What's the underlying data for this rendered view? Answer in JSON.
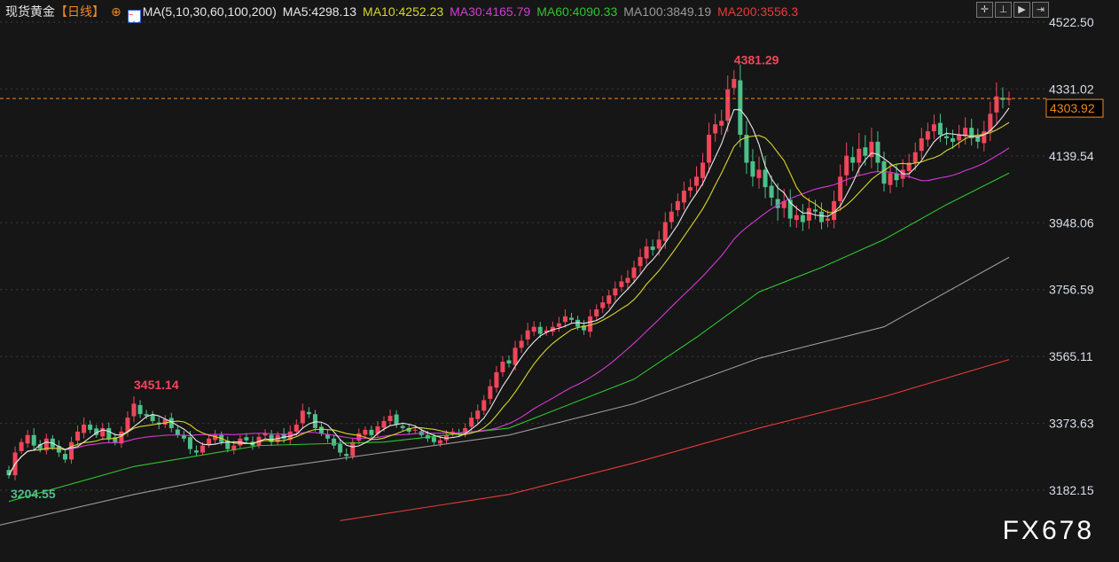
{
  "header": {
    "symbol": "现货黄金",
    "period": "【日线】",
    "ma_icon": "ma-chart-icon",
    "ma_params": "MA(5,10,30,60,100,200)",
    "ma": [
      {
        "label": "MA5:4298.13",
        "color": "#e8e8e8"
      },
      {
        "label": "MA10:4252.23",
        "color": "#d6d62a"
      },
      {
        "label": "MA30:4165.79",
        "color": "#d53ad5"
      },
      {
        "label": "MA60:4090.33",
        "color": "#2fc42f"
      },
      {
        "label": "MA100:3849.19",
        "color": "#9a9a9a"
      },
      {
        "label": "MA200:3556.3",
        "color": "#e83a3a"
      }
    ]
  },
  "toolbar": [
    {
      "icon": "crosshair-icon",
      "glyph": "✛"
    },
    {
      "icon": "axis-scale-icon",
      "glyph": "⊥"
    },
    {
      "icon": "play-icon",
      "glyph": "▶"
    },
    {
      "icon": "exit-right-icon",
      "glyph": "⇥"
    }
  ],
  "watermark": "FX678",
  "colors": {
    "up": "#f0465a",
    "down": "#4cc08a",
    "last_price_line": "#f08a1e"
  },
  "chart_data": {
    "type": "candlestick",
    "y_ticks": [
      "4522.50",
      "4331.02",
      "4139.54",
      "3948.06",
      "3756.59",
      "3565.11",
      "3373.63",
      "3182.15"
    ],
    "ylim": [
      3182.15,
      4522.5
    ],
    "grid": true,
    "last_price": "4303.92",
    "annotations": [
      {
        "text": "3451.14",
        "index": 20,
        "value": 3451.14,
        "color": "#f0465a"
      },
      {
        "text": "3204.55",
        "index": 0,
        "value": 3204.55,
        "color": "#4cc08a"
      },
      {
        "text": "4381.29",
        "index": 116,
        "value": 4381.29,
        "color": "#f0465a"
      }
    ],
    "close": [
      3225,
      3290,
      3320,
      3340,
      3310,
      3300,
      3330,
      3305,
      3290,
      3270,
      3320,
      3350,
      3370,
      3355,
      3340,
      3360,
      3330,
      3320,
      3350,
      3390,
      3430,
      3400,
      3395,
      3380,
      3370,
      3385,
      3360,
      3340,
      3330,
      3300,
      3290,
      3310,
      3330,
      3340,
      3320,
      3300,
      3310,
      3330,
      3325,
      3310,
      3335,
      3345,
      3320,
      3340,
      3330,
      3350,
      3370,
      3410,
      3400,
      3360,
      3345,
      3330,
      3310,
      3290,
      3280,
      3320,
      3345,
      3355,
      3340,
      3365,
      3380,
      3395,
      3370,
      3360,
      3350,
      3355,
      3340,
      3330,
      3320,
      3325,
      3340,
      3350,
      3345,
      3360,
      3390,
      3410,
      3440,
      3480,
      3520,
      3550,
      3545,
      3590,
      3610,
      3640,
      3650,
      3630,
      3640,
      3650,
      3660,
      3680,
      3670,
      3650,
      3640,
      3680,
      3700,
      3720,
      3740,
      3760,
      3780,
      3790,
      3820,
      3850,
      3880,
      3870,
      3900,
      3950,
      3980,
      4010,
      4040,
      4050,
      4080,
      4120,
      4200,
      4230,
      4240,
      4330,
      4360,
      4200,
      4120,
      4080,
      4100,
      4050,
      4020,
      3990,
      4010,
      3960,
      3970,
      3950,
      3990,
      3980,
      3950,
      3960,
      4010,
      4080,
      4140,
      4120,
      4160,
      4140,
      4180,
      4120,
      4060,
      4090,
      4070,
      4100,
      4120,
      4150,
      4190,
      4210,
      4230,
      4200,
      4190,
      4180,
      4200,
      4220,
      4190,
      4180,
      4210,
      4260,
      4310,
      4300,
      4303.92
    ],
    "open_first": 3240,
    "wick": [
      12,
      18,
      10,
      15,
      20,
      12,
      14,
      10,
      16,
      12,
      15,
      18,
      20,
      12,
      10,
      14,
      16,
      12,
      15,
      18,
      21,
      14,
      12,
      10,
      16,
      12,
      15,
      10,
      12,
      18,
      14,
      10,
      12,
      15,
      10,
      12,
      14,
      10,
      12,
      15,
      10,
      12,
      14,
      10,
      16,
      18,
      15,
      20,
      14,
      12,
      10,
      15,
      12,
      14,
      16,
      12,
      14,
      10,
      12,
      15,
      14,
      18,
      12,
      10,
      12,
      14,
      10,
      12,
      10,
      12,
      14,
      10,
      12,
      14,
      16,
      18,
      15,
      20,
      18,
      16,
      14,
      20,
      18,
      22,
      16,
      14,
      12,
      15,
      18,
      20,
      14,
      12,
      16,
      20,
      14,
      18,
      16,
      20,
      18,
      22,
      20,
      24,
      22,
      20,
      25,
      28,
      24,
      22,
      26,
      24,
      30,
      28,
      35,
      30,
      32,
      40,
      25,
      45,
      40,
      35,
      38,
      40,
      30,
      45,
      35,
      30,
      28,
      32,
      30,
      28,
      26,
      24,
      30,
      35,
      38,
      30,
      45,
      35,
      40,
      30,
      28,
      30,
      25,
      30,
      26,
      28,
      30,
      25,
      28,
      26,
      24,
      25,
      28,
      30,
      26,
      24,
      30,
      35,
      40,
      30,
      20
    ],
    "ma60": [
      [
        0,
        3150
      ],
      [
        20,
        3250
      ],
      [
        40,
        3310
      ],
      [
        60,
        3320
      ],
      [
        80,
        3360
      ],
      [
        100,
        3500
      ],
      [
        110,
        3620
      ],
      [
        120,
        3750
      ],
      [
        130,
        3820
      ],
      [
        140,
        3900
      ],
      [
        150,
        4000
      ],
      [
        160,
        4090.33
      ]
    ],
    "ma100": [
      [
        -2,
        3080
      ],
      [
        20,
        3170
      ],
      [
        40,
        3240
      ],
      [
        60,
        3290
      ],
      [
        80,
        3340
      ],
      [
        100,
        3430
      ],
      [
        120,
        3560
      ],
      [
        140,
        3650
      ],
      [
        160,
        3849.19
      ]
    ],
    "ma200": [
      [
        53,
        3095
      ],
      [
        80,
        3170
      ],
      [
        100,
        3260
      ],
      [
        120,
        3360
      ],
      [
        140,
        3450
      ],
      [
        160,
        3556.3
      ]
    ]
  }
}
